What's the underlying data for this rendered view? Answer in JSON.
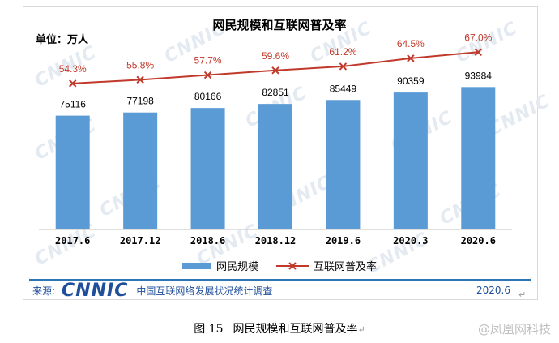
{
  "chart_data": {
    "type": "bar",
    "title": "网民规模和互联网普及率",
    "unit_label": "单位：万人",
    "categories": [
      "2017.6",
      "2017.12",
      "2018.6",
      "2018.12",
      "2019.6",
      "2020.3",
      "2020.6"
    ],
    "series": [
      {
        "name": "网民规模",
        "type": "bar",
        "values": [
          75116,
          77198,
          80166,
          82851,
          85449,
          90359,
          93984
        ],
        "color": "#5b9bd5"
      },
      {
        "name": "互联网普及率",
        "type": "line",
        "values": [
          54.3,
          55.8,
          57.7,
          59.6,
          61.2,
          64.5,
          67.0
        ],
        "value_labels": [
          "54.3%",
          "55.8%",
          "57.7%",
          "59.6%",
          "61.2%",
          "64.5%",
          "67.0%"
        ],
        "color": "#c0392b",
        "marker": "x"
      }
    ],
    "ylim": [
      0,
      130000
    ],
    "ylim_secondary": [
      -5,
      75
    ],
    "grid": false,
    "legend": "bottom"
  },
  "watermark_text": "CNNIC",
  "footer": {
    "source_label": "来源:",
    "logo": "CNNIC",
    "source_text": "中国互联网络发展状况统计调查",
    "date": "2020.6"
  },
  "caption": {
    "figure_number": "图 15",
    "text": "网民规模和互联网普及率"
  },
  "weibo_watermark": "@凤凰网科技",
  "colors": {
    "bar": "#5b9bd5",
    "line": "#c0392b",
    "brand": "#1f4e9a"
  }
}
